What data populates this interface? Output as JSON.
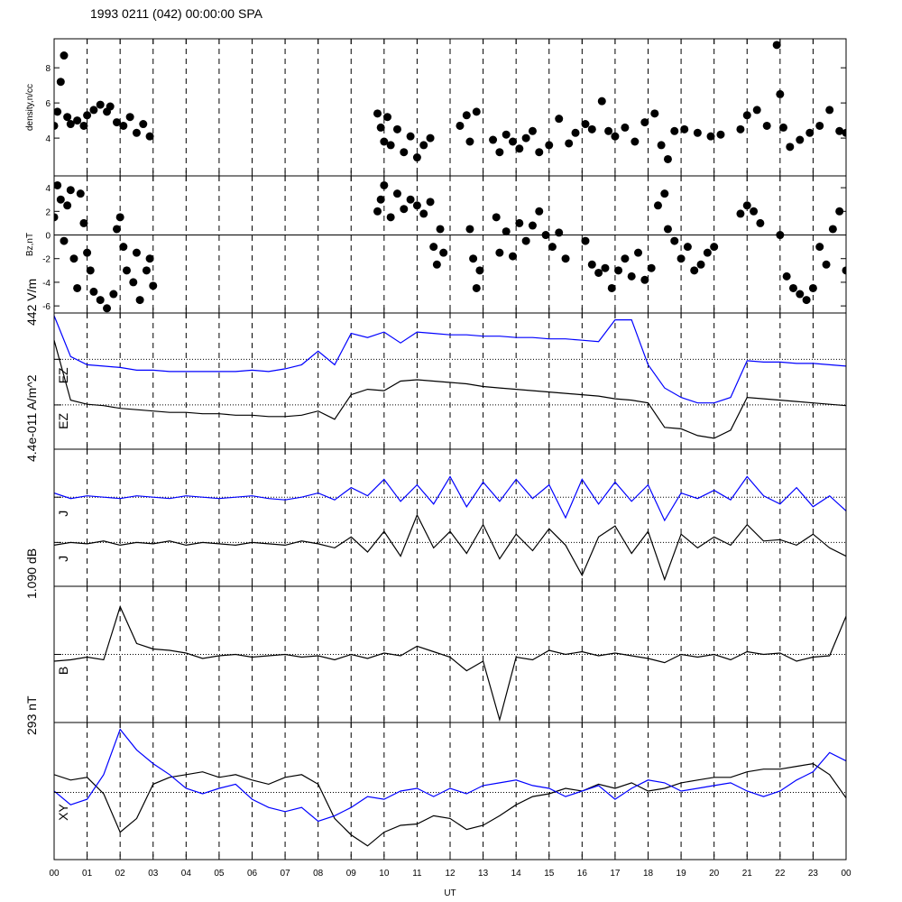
{
  "chart_data": [
    {
      "type": "scatter",
      "title": "1993 0211 (042) 00:00:00 SPA",
      "ylabel": "density,n/cc",
      "color": "#000000",
      "xlim": [
        0,
        24
      ],
      "ylim": [
        1.85,
        9.65
      ],
      "yticks": [
        4,
        6,
        8
      ],
      "x": [
        0,
        0.1,
        0.2,
        0.3,
        0.4,
        0.5,
        0.7,
        0.9,
        1.0,
        1.2,
        1.4,
        1.6,
        1.7,
        1.9,
        2.1,
        2.3,
        2.5,
        2.7,
        2.9,
        9.8,
        9.9,
        10.0,
        10.1,
        10.2,
        10.4,
        10.6,
        10.8,
        11.0,
        11.2,
        11.4,
        12.3,
        12.5,
        12.6,
        12.8,
        13.3,
        13.5,
        13.7,
        13.9,
        14.1,
        14.3,
        14.5,
        14.7,
        15.0,
        15.3,
        15.6,
        15.8,
        16.1,
        16.3,
        16.6,
        16.8,
        17.0,
        17.3,
        17.6,
        17.9,
        18.2,
        18.4,
        18.6,
        18.8,
        19.1,
        19.5,
        19.9,
        20.2,
        20.8,
        21.0,
        21.3,
        21.6,
        21.9,
        22.0,
        22.1,
        22.3,
        22.6,
        22.9,
        23.2,
        23.5,
        23.8,
        24.0
      ],
      "values": [
        4.7,
        5.5,
        7.2,
        8.7,
        5.2,
        4.8,
        5.0,
        4.7,
        5.3,
        5.6,
        5.9,
        5.5,
        5.8,
        4.9,
        4.7,
        5.2,
        4.3,
        4.8,
        4.1,
        5.4,
        4.6,
        3.8,
        5.2,
        3.6,
        4.5,
        3.2,
        4.1,
        2.9,
        3.6,
        4.0,
        4.7,
        5.3,
        3.8,
        5.5,
        3.9,
        3.2,
        4.2,
        3.8,
        3.4,
        4.0,
        4.4,
        3.2,
        3.6,
        5.1,
        3.7,
        4.3,
        4.8,
        4.5,
        6.1,
        4.4,
        4.1,
        4.6,
        3.8,
        4.9,
        5.4,
        3.6,
        2.8,
        4.4,
        4.5,
        4.3,
        4.1,
        4.2,
        4.5,
        5.3,
        5.6,
        4.7,
        9.3,
        6.5,
        4.6,
        3.5,
        3.9,
        4.3,
        4.7,
        5.6,
        4.4,
        4.3
      ]
    },
    {
      "type": "scatter",
      "ylabel": "Bz,nT",
      "color": "#000000",
      "xlim": [
        0,
        24
      ],
      "ylim": [
        -6.6,
        5.0
      ],
      "yticks": [
        -6,
        -4,
        -2,
        0,
        2,
        4
      ],
      "ref_lines": [
        0
      ],
      "ref_style": "solid",
      "x": [
        0,
        0.1,
        0.2,
        0.3,
        0.4,
        0.5,
        0.6,
        0.7,
        0.8,
        0.9,
        1.0,
        1.1,
        1.2,
        1.4,
        1.6,
        1.8,
        1.9,
        2.0,
        2.1,
        2.2,
        2.4,
        2.5,
        2.6,
        2.8,
        2.9,
        3.0,
        9.8,
        9.9,
        10.0,
        10.2,
        10.4,
        10.6,
        10.8,
        11.0,
        11.2,
        11.4,
        11.5,
        11.6,
        11.7,
        11.8,
        12.6,
        12.7,
        12.8,
        12.9,
        13.4,
        13.5,
        13.7,
        13.9,
        14.1,
        14.3,
        14.5,
        14.7,
        14.9,
        15.1,
        15.3,
        15.5,
        16.1,
        16.3,
        16.5,
        16.7,
        16.9,
        17.1,
        17.3,
        17.5,
        17.7,
        17.9,
        18.1,
        18.3,
        18.5,
        18.6,
        18.8,
        19.0,
        19.2,
        19.4,
        19.6,
        19.8,
        20.0,
        20.8,
        21.0,
        21.2,
        21.4,
        22.0,
        22.2,
        22.4,
        22.6,
        22.8,
        23.0,
        23.2,
        23.4,
        23.6,
        23.8,
        24.0
      ],
      "values": [
        1.5,
        4.2,
        3.0,
        -0.5,
        2.5,
        3.8,
        -2,
        -4.5,
        3.5,
        1,
        -1.5,
        -3,
        -4.8,
        -5.5,
        -6.2,
        -5,
        0.5,
        1.5,
        -1,
        -3,
        -4,
        -1.5,
        -5.5,
        -3,
        -2,
        -4.3,
        2,
        3,
        4.2,
        1.5,
        3.5,
        2.2,
        3,
        2.5,
        1.8,
        2.8,
        -1,
        -2.5,
        0.5,
        -1.5,
        0.5,
        -2,
        -4.5,
        -3,
        1.5,
        -1.5,
        0.3,
        -1.8,
        1,
        -0.5,
        0.8,
        2,
        0,
        -1,
        0.2,
        -2,
        -0.5,
        -2.5,
        -3.2,
        -2.8,
        -4.5,
        -3,
        -2,
        -3.5,
        -1.5,
        -3.8,
        -2.8,
        2.5,
        3.5,
        0.5,
        -0.5,
        -2,
        -1,
        -3,
        -2.5,
        -1.5,
        -1,
        1.8,
        2.5,
        2,
        1,
        0,
        -3.5,
        -4.5,
        -5,
        -5.5,
        -4.5,
        -1,
        -2.5,
        0.5,
        2,
        -3
      ]
    },
    {
      "type": "line",
      "scale_label": "442 V/m",
      "xlim": [
        0,
        24
      ],
      "ylim": [
        0,
        100
      ],
      "ref_lines": [
        66,
        32.5
      ],
      "ref_style": "dotted",
      "x": [
        0,
        0.5,
        1,
        1.5,
        2,
        2.5,
        3,
        3.5,
        4,
        4.5,
        5,
        5.5,
        6,
        6.5,
        7,
        7.5,
        8,
        8.5,
        9,
        9.5,
        10,
        10.5,
        11,
        11.5,
        12,
        12.5,
        13,
        13.5,
        14,
        14.5,
        15,
        15.5,
        16,
        16.5,
        17,
        17.5,
        18,
        18.5,
        19,
        19.5,
        20,
        20.5,
        21,
        21.5,
        22,
        22.5,
        23,
        23.5,
        24
      ],
      "series": [
        {
          "name": "EZ",
          "color": "#0000ff",
          "values": [
            98,
            68,
            62,
            61,
            60,
            58,
            58,
            57,
            57,
            57,
            57,
            57,
            58,
            57,
            59,
            62,
            72,
            62,
            85,
            82,
            86,
            78,
            86,
            85,
            84,
            84,
            83,
            83,
            82,
            82,
            81,
            81,
            80,
            79,
            95,
            95,
            62,
            45,
            38,
            34,
            34,
            38,
            65,
            64,
            64,
            63,
            63,
            62,
            61
          ]
        },
        {
          "name": "EZ",
          "color": "#000000",
          "values": [
            80,
            36,
            33,
            32,
            30,
            29,
            28,
            27,
            27,
            26,
            26,
            25,
            25,
            24,
            24,
            25,
            28,
            22,
            40,
            44,
            43,
            50,
            51,
            50,
            49,
            48,
            46,
            45,
            44,
            43,
            42,
            41,
            40,
            39,
            37,
            36,
            34,
            16,
            15,
            10,
            8,
            14,
            38,
            37,
            36,
            35,
            34,
            33,
            32
          ]
        }
      ]
    },
    {
      "type": "line",
      "scale_label": "4.4e-011 A/m^2",
      "xlim": [
        0,
        24
      ],
      "ylim": [
        0,
        100
      ],
      "ref_lines": [
        65,
        32
      ],
      "ref_style": "dotted",
      "x": [
        0,
        0.5,
        1,
        1.5,
        2,
        2.5,
        3,
        3.5,
        4,
        4.5,
        5,
        5.5,
        6,
        6.5,
        7,
        7.5,
        8,
        8.5,
        9,
        9.5,
        10,
        10.5,
        11,
        11.5,
        12,
        12.5,
        13,
        13.5,
        14,
        14.5,
        15,
        15.5,
        16,
        16.5,
        17,
        17.5,
        18,
        18.5,
        19,
        19.5,
        20,
        20.5,
        21,
        21.5,
        22,
        22.5,
        23,
        23.5,
        24
      ],
      "series": [
        {
          "name": "J",
          "color": "#0000ff",
          "values": [
            68,
            64,
            66,
            65,
            64,
            66,
            65,
            64,
            66,
            65,
            64,
            65,
            66,
            64,
            63,
            65,
            68,
            63,
            72,
            66,
            78,
            62,
            74,
            60,
            80,
            58,
            76,
            62,
            78,
            64,
            74,
            50,
            78,
            60,
            76,
            62,
            74,
            48,
            68,
            64,
            70,
            63,
            80,
            66,
            60,
            72,
            58,
            66,
            55
          ]
        },
        {
          "name": "J",
          "color": "#000000",
          "values": [
            30,
            32,
            31,
            33,
            30,
            32,
            31,
            33,
            30,
            32,
            31,
            30,
            32,
            31,
            30,
            33,
            31,
            28,
            36,
            25,
            40,
            22,
            52,
            28,
            40,
            24,
            45,
            20,
            38,
            26,
            42,
            30,
            8,
            36,
            44,
            24,
            40,
            5,
            38,
            28,
            36,
            30,
            45,
            33,
            34,
            30,
            38,
            28,
            22
          ]
        }
      ]
    },
    {
      "type": "line",
      "scale_label": "1.090 dB",
      "xlim": [
        0,
        24
      ],
      "ylim": [
        0,
        100
      ],
      "ref_lines": [
        50
      ],
      "ref_style": "dotted",
      "x": [
        0,
        0.5,
        1,
        1.5,
        2,
        2.5,
        3,
        3.5,
        4,
        4.5,
        5,
        5.5,
        6,
        6.5,
        7,
        7.5,
        8,
        8.5,
        9,
        9.5,
        10,
        10.5,
        11,
        11.5,
        12,
        12.5,
        13,
        13.5,
        14,
        14.5,
        15,
        15.5,
        16,
        16.5,
        17,
        17.5,
        18,
        18.5,
        19,
        19.5,
        20,
        20.5,
        21,
        21.5,
        22,
        22.5,
        23,
        23.5,
        24
      ],
      "series": [
        {
          "name": "B",
          "color": "#000000",
          "values": [
            45,
            46,
            48,
            46,
            85,
            58,
            54,
            53,
            51,
            47,
            49,
            50,
            48,
            49,
            50,
            48,
            49,
            46,
            50,
            47,
            51,
            49,
            56,
            52,
            48,
            38,
            45,
            2,
            48,
            46,
            53,
            50,
            52,
            49,
            51,
            49,
            47,
            44,
            50,
            48,
            50,
            46,
            52,
            50,
            51,
            45,
            48,
            49,
            78
          ]
        }
      ]
    },
    {
      "type": "line",
      "scale_label": "293 nT",
      "label": "XY",
      "xlabel": "UT",
      "xlim": [
        0,
        24
      ],
      "ylim": [
        0,
        100
      ],
      "ref_lines": [
        49
      ],
      "ref_style": "dotted",
      "xticks": [
        {
          "value": 0,
          "label": "00"
        },
        {
          "value": 1,
          "label": "01"
        },
        {
          "value": 2,
          "label": "02"
        },
        {
          "value": 3,
          "label": "03"
        },
        {
          "value": 4,
          "label": "04"
        },
        {
          "value": 5,
          "label": "05"
        },
        {
          "value": 6,
          "label": "06"
        },
        {
          "value": 7,
          "label": "07"
        },
        {
          "value": 8,
          "label": "08"
        },
        {
          "value": 9,
          "label": "09"
        },
        {
          "value": 10,
          "label": "10"
        },
        {
          "value": 11,
          "label": "11"
        },
        {
          "value": 12,
          "label": "12"
        },
        {
          "value": 13,
          "label": "13"
        },
        {
          "value": 14,
          "label": "14"
        },
        {
          "value": 15,
          "label": "15"
        },
        {
          "value": 16,
          "label": "16"
        },
        {
          "value": 17,
          "label": "17"
        },
        {
          "value": 18,
          "label": "18"
        },
        {
          "value": 19,
          "label": "19"
        },
        {
          "value": 20,
          "label": "20"
        },
        {
          "value": 21,
          "label": "21"
        },
        {
          "value": 22,
          "label": "22"
        },
        {
          "value": 23,
          "label": "23"
        },
        {
          "value": 24,
          "label": "00"
        }
      ],
      "x": [
        0,
        0.5,
        1,
        1.5,
        2,
        2.5,
        3,
        3.5,
        4,
        4.5,
        5,
        5.5,
        6,
        6.5,
        7,
        7.5,
        8,
        8.5,
        9,
        9.5,
        10,
        10.5,
        11,
        11.5,
        12,
        12.5,
        13,
        13.5,
        14,
        14.5,
        15,
        15.5,
        16,
        16.5,
        17,
        17.5,
        18,
        18.5,
        19,
        19.5,
        20,
        20.5,
        21,
        21.5,
        22,
        22.5,
        23,
        23.5,
        24
      ],
      "series": [
        {
          "color": "#000000",
          "values": [
            62,
            58,
            60,
            48,
            20,
            30,
            55,
            60,
            62,
            64,
            60,
            62,
            58,
            55,
            60,
            62,
            55,
            30,
            18,
            10,
            20,
            25,
            26,
            32,
            30,
            22,
            25,
            32,
            40,
            46,
            48,
            52,
            50,
            55,
            52,
            56,
            50,
            52,
            56,
            58,
            60,
            60,
            64,
            66,
            66,
            68,
            70,
            62,
            45
          ]
        },
        {
          "color": "#0000ff",
          "values": [
            50,
            40,
            44,
            62,
            95,
            80,
            70,
            62,
            52,
            48,
            52,
            55,
            44,
            38,
            35,
            38,
            28,
            32,
            38,
            46,
            44,
            50,
            52,
            46,
            52,
            48,
            54,
            56,
            58,
            54,
            52,
            46,
            50,
            54,
            44,
            52,
            58,
            56,
            50,
            52,
            54,
            56,
            50,
            46,
            50,
            58,
            64,
            78,
            72
          ]
        }
      ]
    }
  ]
}
